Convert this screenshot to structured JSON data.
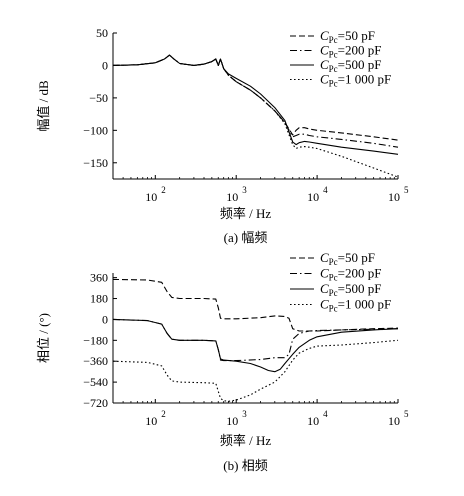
{
  "chart_data": [
    {
      "type": "line",
      "title": "",
      "caption": "(a)  幅频",
      "xlabel": "频率 / Hz",
      "ylabel": "幅值 / dB",
      "xscale": "log",
      "xlim": [
        30,
        100000
      ],
      "ylim": [
        -175,
        50
      ],
      "xticks": [
        100,
        1000,
        10000,
        100000
      ],
      "xtick_labels": [
        "10",
        "10",
        "10",
        "10"
      ],
      "xtick_exps": [
        "2",
        "3",
        "4",
        "5"
      ],
      "yticks": [
        50,
        0,
        -50,
        -100,
        -150
      ],
      "ytick_labels": [
        "50",
        "0",
        "−50",
        "−100",
        "−150"
      ],
      "legend_position": "top-right",
      "series": [
        {
          "name": "CPc=50 pF",
          "label_main": "C",
          "label_sub": "Pc",
          "label_rest": "=50 pF",
          "dash": "dashed",
          "x": [
            30,
            60,
            100,
            130,
            150,
            170,
            200,
            300,
            400,
            500,
            560,
            600,
            640,
            700,
            800,
            1000,
            1500,
            2000,
            3000,
            4000,
            5000,
            5500,
            6000,
            7000,
            8000,
            10000,
            20000,
            50000,
            100000
          ],
          "y": [
            0,
            1,
            4,
            10,
            16,
            10,
            3,
            0,
            2,
            6,
            10,
            0,
            10,
            -5,
            -15,
            -25,
            -38,
            -50,
            -70,
            -88,
            -107,
            -100,
            -96,
            -96,
            -98,
            -100,
            -104,
            -110,
            -115
          ]
        },
        {
          "name": "CPc=200 pF",
          "label_main": "C",
          "label_sub": "Pc",
          "label_rest": "=200 pF",
          "dash": "dashdot",
          "x": [
            30,
            60,
            100,
            130,
            150,
            170,
            200,
            300,
            400,
            500,
            560,
            600,
            640,
            700,
            800,
            1000,
            1500,
            2000,
            3000,
            4000,
            5000,
            5500,
            6000,
            7000,
            8000,
            10000,
            20000,
            50000,
            100000
          ],
          "y": [
            0,
            1,
            4,
            10,
            16,
            10,
            3,
            0,
            2,
            6,
            10,
            0,
            10,
            -5,
            -15,
            -25,
            -38,
            -50,
            -70,
            -88,
            -110,
            -108,
            -106,
            -106,
            -108,
            -110,
            -114,
            -120,
            -126
          ]
        },
        {
          "name": "CPc=500 pF",
          "label_main": "C",
          "label_sub": "Pc",
          "label_rest": "=500 pF",
          "dash": "solid",
          "x": [
            30,
            60,
            100,
            130,
            150,
            170,
            200,
            300,
            400,
            500,
            560,
            600,
            640,
            700,
            800,
            1000,
            1500,
            2000,
            3000,
            4000,
            5000,
            5500,
            6000,
            7000,
            8000,
            10000,
            20000,
            50000,
            100000
          ],
          "y": [
            0,
            1,
            4,
            10,
            16,
            10,
            3,
            0,
            2,
            6,
            10,
            0,
            10,
            -5,
            -13,
            -20,
            -32,
            -44,
            -65,
            -85,
            -118,
            -122,
            -119,
            -117,
            -118,
            -120,
            -126,
            -132,
            -137
          ]
        },
        {
          "name": "CPc=1 000 pF",
          "label_main": "C",
          "label_sub": "Pc",
          "label_rest": "=1 000 pF",
          "dash": "dotted",
          "x": [
            30,
            60,
            100,
            130,
            150,
            170,
            200,
            300,
            400,
            500,
            560,
            600,
            640,
            700,
            800,
            1000,
            1500,
            2000,
            3000,
            4000,
            5000,
            5500,
            6000,
            7000,
            8000,
            10000,
            20000,
            50000,
            100000
          ],
          "y": [
            0,
            1,
            4,
            10,
            16,
            10,
            3,
            0,
            2,
            6,
            10,
            0,
            10,
            -5,
            -15,
            -25,
            -38,
            -50,
            -70,
            -90,
            -122,
            -128,
            -126,
            -125,
            -126,
            -128,
            -140,
            -158,
            -172
          ]
        }
      ]
    },
    {
      "type": "line",
      "title": "",
      "caption": "(b)  相频",
      "xlabel": "频率 / Hz",
      "ylabel": "相位 / (°)",
      "xscale": "log",
      "xlim": [
        30,
        100000
      ],
      "ylim": [
        -720,
        400
      ],
      "xticks": [
        100,
        1000,
        10000,
        100000
      ],
      "xtick_labels": [
        "10",
        "10",
        "10",
        "10"
      ],
      "xtick_exps": [
        "2",
        "3",
        "4",
        "5"
      ],
      "yticks": [
        360,
        180,
        0,
        -180,
        -360,
        -540,
        -720
      ],
      "ytick_labels": [
        "360",
        "180",
        "0",
        "−180",
        "−360",
        "−540",
        "−720"
      ],
      "legend_position": "top-right",
      "series": [
        {
          "name": "CPc=50 pF",
          "label_main": "C",
          "label_sub": "Pc",
          "label_rest": "=50 pF",
          "dash": "dashed",
          "x": [
            30,
            80,
            120,
            140,
            160,
            200,
            400,
            560,
            600,
            640,
            700,
            1000,
            2000,
            3000,
            4000,
            4500,
            5000,
            6000,
            8000,
            10000,
            20000,
            50000,
            100000
          ],
          "y": [
            345,
            340,
            320,
            240,
            190,
            180,
            180,
            175,
            100,
            10,
            5,
            5,
            15,
            30,
            25,
            10,
            -80,
            -100,
            -100,
            -100,
            -90,
            -80,
            -75
          ]
        },
        {
          "name": "CPc=200 pF",
          "label_main": "C",
          "label_sub": "Pc",
          "label_rest": "=200 pF",
          "dash": "dashdot",
          "x": [
            30,
            80,
            120,
            140,
            160,
            200,
            400,
            560,
            600,
            640,
            700,
            1000,
            2000,
            3000,
            4000,
            4500,
            5000,
            6000,
            8000,
            10000,
            20000,
            50000,
            100000
          ],
          "y": [
            0,
            -10,
            -40,
            -120,
            -170,
            -180,
            -180,
            -185,
            -260,
            -350,
            -355,
            -355,
            -345,
            -330,
            -330,
            -300,
            -170,
            -120,
            -100,
            -95,
            -90,
            -85,
            -80
          ]
        },
        {
          "name": "CPc=500 pF",
          "label_main": "C",
          "label_sub": "Pc",
          "label_rest": "=500 pF",
          "dash": "solid",
          "x": [
            30,
            80,
            120,
            140,
            160,
            200,
            400,
            560,
            600,
            640,
            700,
            1000,
            1500,
            2000,
            2500,
            3000,
            3500,
            4000,
            5000,
            6000,
            8000,
            10000,
            20000,
            50000,
            100000
          ],
          "y": [
            0,
            -10,
            -40,
            -120,
            -170,
            -180,
            -180,
            -185,
            -260,
            -340,
            -350,
            -360,
            -380,
            -410,
            -440,
            -450,
            -430,
            -380,
            -300,
            -240,
            -180,
            -150,
            -110,
            -90,
            -80
          ]
        },
        {
          "name": "CPc=1 000 pF",
          "label_main": "C",
          "label_sub": "Pc",
          "label_rest": "=1 000 pF",
          "dash": "dotted",
          "x": [
            30,
            80,
            120,
            140,
            160,
            200,
            400,
            560,
            600,
            640,
            700,
            800,
            1000,
            1500,
            2000,
            3000,
            4000,
            5000,
            6000,
            8000,
            10000,
            20000,
            50000,
            100000
          ],
          "y": [
            -360,
            -370,
            -400,
            -480,
            -530,
            -540,
            -545,
            -550,
            -620,
            -680,
            -700,
            -705,
            -695,
            -650,
            -600,
            -540,
            -450,
            -350,
            -290,
            -250,
            -230,
            -220,
            -200,
            -180
          ]
        }
      ]
    }
  ]
}
